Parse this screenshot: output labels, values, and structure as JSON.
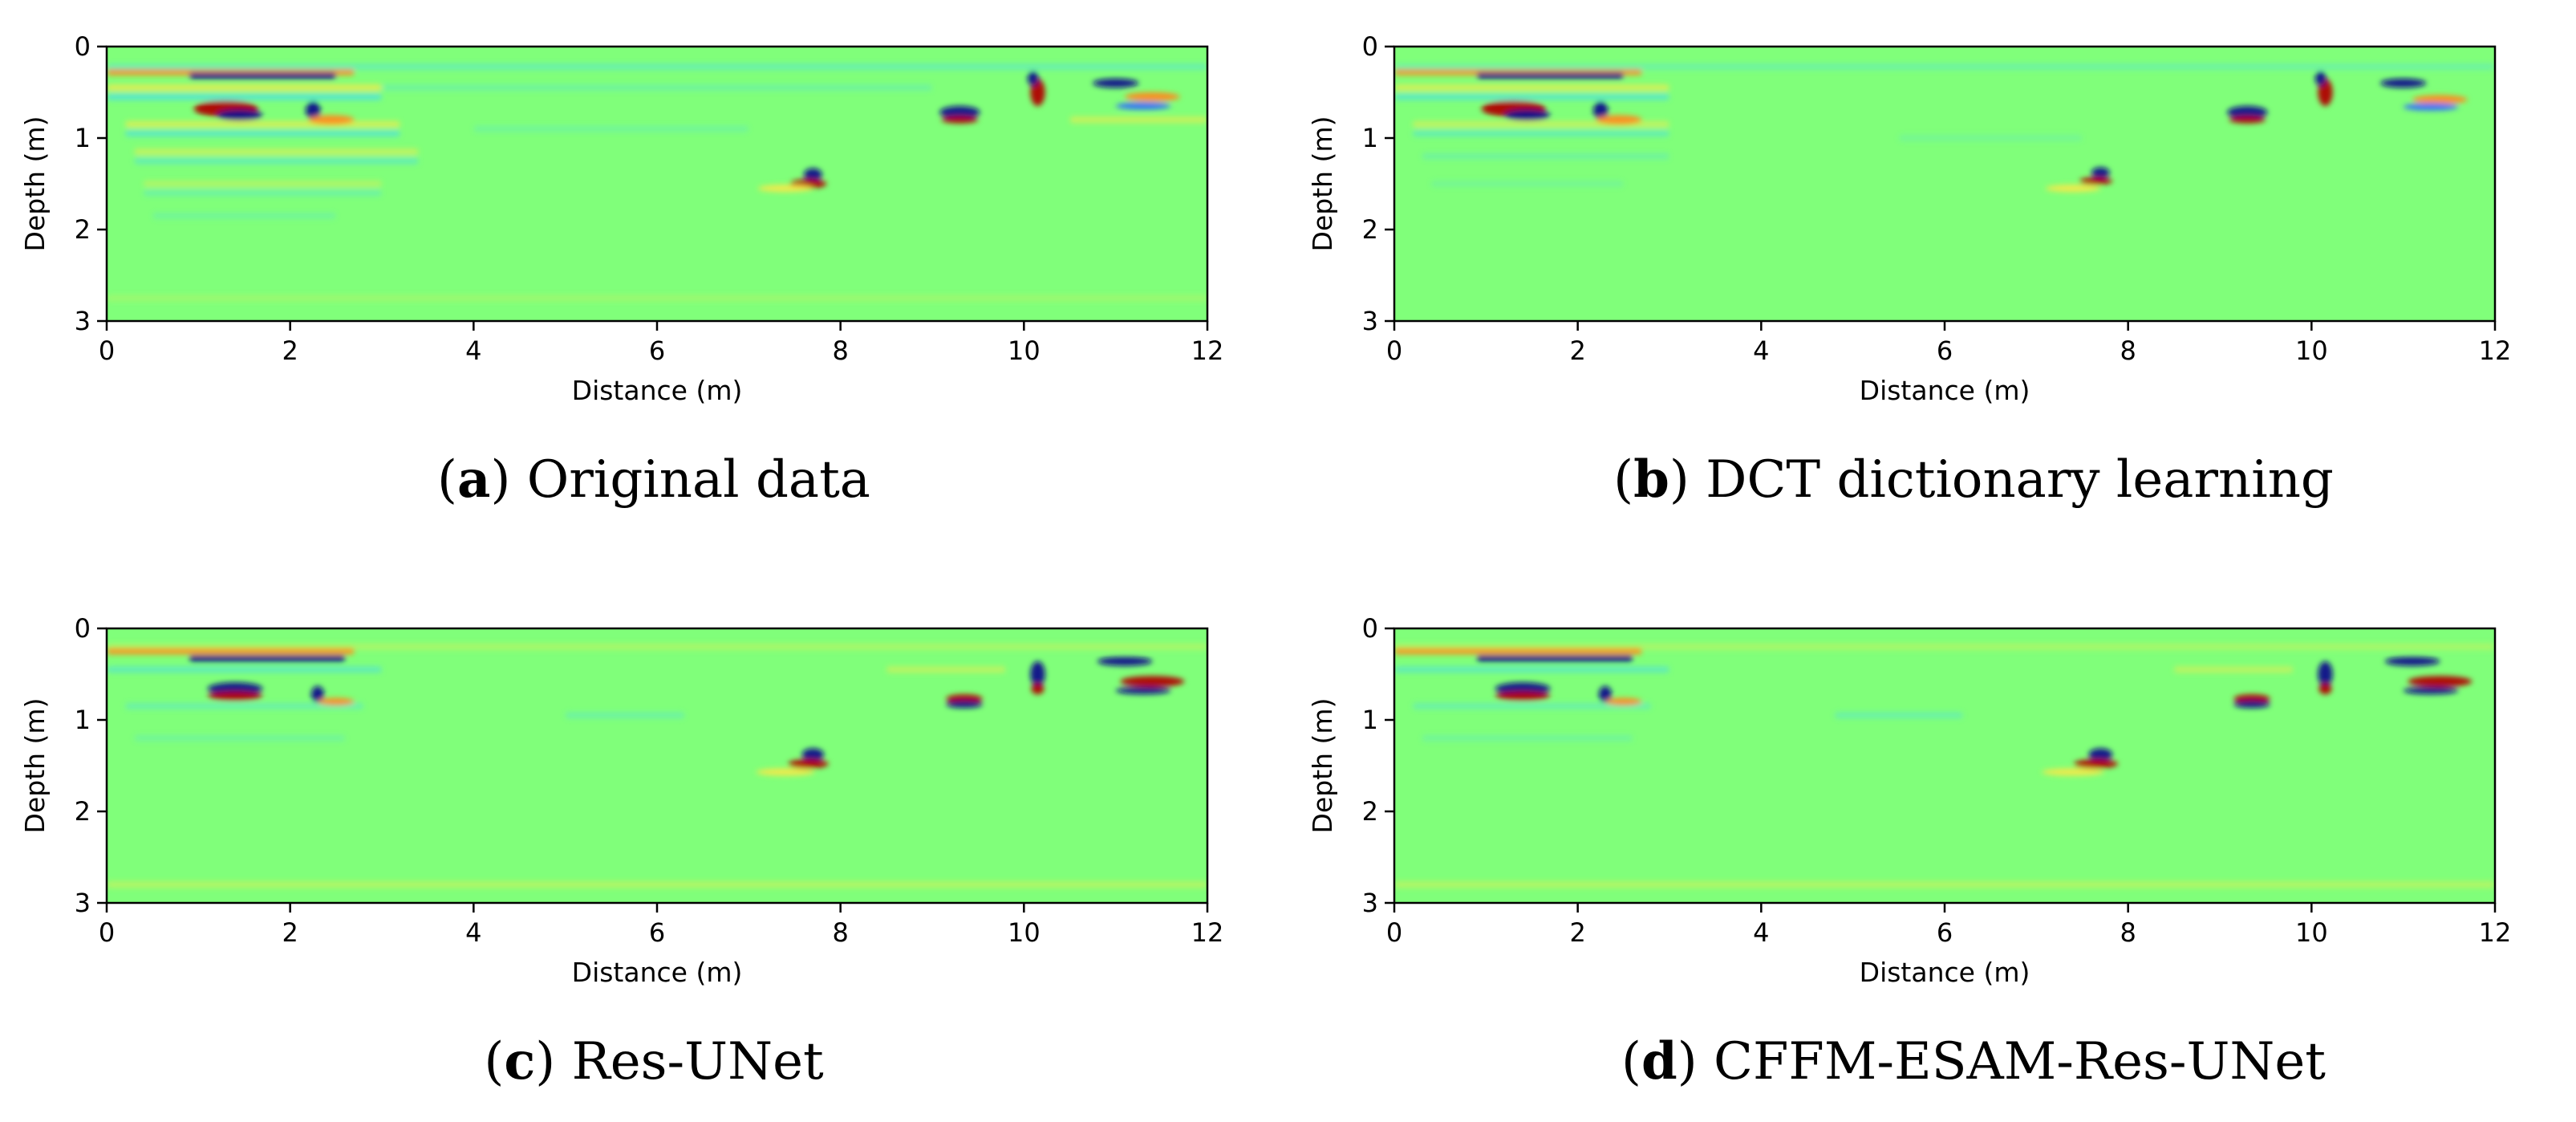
{
  "colors": {
    "background_field": "#80ff7a",
    "strong_negative": "#0a0a8a",
    "negative": "#2f6cff",
    "cyan": "#4de0e0",
    "yellow": "#f5e94a",
    "orange": "#ff8a1a",
    "strong_positive": "#b00000"
  },
  "chart_data": [
    {
      "type": "heatmap",
      "panel_id": "a",
      "caption_letter": "a",
      "caption_text": "Original data",
      "xlabel": "Distance (m)",
      "ylabel": "Depth (m)",
      "xlim": [
        0,
        12
      ],
      "ylim": [
        0,
        3
      ],
      "xticks": [
        "0",
        "2",
        "4",
        "6",
        "8",
        "10",
        "12"
      ],
      "yticks": [
        "0",
        "1",
        "2",
        "3"
      ],
      "features": [
        {
          "kind": "band",
          "x0": 0.0,
          "x1": 2.7,
          "depth": 0.28,
          "color": "orange",
          "opacity": 0.9
        },
        {
          "kind": "band",
          "x0": 0.9,
          "x1": 2.5,
          "depth": 0.32,
          "color": "strong_negative",
          "opacity": 0.95
        },
        {
          "kind": "band",
          "x0": 0.0,
          "x1": 12.0,
          "depth": 0.22,
          "color": "cyan",
          "opacity": 0.5
        },
        {
          "kind": "band",
          "x0": 0.0,
          "x1": 3.0,
          "depth": 0.45,
          "color": "yellow",
          "opacity": 0.8
        },
        {
          "kind": "band",
          "x0": 0.0,
          "x1": 3.0,
          "depth": 0.55,
          "color": "cyan",
          "opacity": 0.8
        },
        {
          "kind": "band",
          "x0": 0.2,
          "x1": 3.2,
          "depth": 0.85,
          "color": "yellow",
          "opacity": 0.7
        },
        {
          "kind": "band",
          "x0": 0.2,
          "x1": 3.2,
          "depth": 0.95,
          "color": "cyan",
          "opacity": 0.7
        },
        {
          "kind": "band",
          "x0": 0.3,
          "x1": 3.4,
          "depth": 1.15,
          "color": "yellow",
          "opacity": 0.55
        },
        {
          "kind": "band",
          "x0": 0.3,
          "x1": 3.4,
          "depth": 1.25,
          "color": "cyan",
          "opacity": 0.55
        },
        {
          "kind": "band",
          "x0": 0.4,
          "x1": 3.0,
          "depth": 1.5,
          "color": "yellow",
          "opacity": 0.4
        },
        {
          "kind": "band",
          "x0": 0.4,
          "x1": 3.0,
          "depth": 1.6,
          "color": "cyan",
          "opacity": 0.4
        },
        {
          "kind": "band",
          "x0": 0.5,
          "x1": 2.5,
          "depth": 1.85,
          "color": "cyan",
          "opacity": 0.3
        },
        {
          "kind": "blob",
          "x": 1.3,
          "depth": 0.68,
          "rx": 0.35,
          "ry": 0.09,
          "color": "strong_positive"
        },
        {
          "kind": "blob",
          "x": 1.45,
          "depth": 0.75,
          "rx": 0.25,
          "ry": 0.06,
          "color": "strong_negative"
        },
        {
          "kind": "blob",
          "x": 2.25,
          "depth": 0.7,
          "rx": 0.08,
          "ry": 0.1,
          "color": "strong_negative"
        },
        {
          "kind": "blob",
          "x": 2.45,
          "depth": 0.8,
          "rx": 0.25,
          "ry": 0.05,
          "color": "orange"
        },
        {
          "kind": "band",
          "x0": 3.0,
          "x1": 9.0,
          "depth": 0.45,
          "color": "cyan",
          "opacity": 0.35
        },
        {
          "kind": "band",
          "x0": 4.0,
          "x1": 7.0,
          "depth": 0.9,
          "color": "cyan",
          "opacity": 0.3
        },
        {
          "kind": "blob",
          "x": 7.7,
          "depth": 1.4,
          "rx": 0.1,
          "ry": 0.07,
          "color": "strong_negative"
        },
        {
          "kind": "blob",
          "x": 7.65,
          "depth": 1.5,
          "rx": 0.2,
          "ry": 0.05,
          "color": "strong_positive"
        },
        {
          "kind": "blob",
          "x": 7.4,
          "depth": 1.55,
          "rx": 0.3,
          "ry": 0.04,
          "color": "yellow"
        },
        {
          "kind": "blob",
          "x": 9.3,
          "depth": 0.72,
          "rx": 0.22,
          "ry": 0.07,
          "color": "strong_negative"
        },
        {
          "kind": "blob",
          "x": 9.3,
          "depth": 0.8,
          "rx": 0.2,
          "ry": 0.04,
          "color": "strong_positive"
        },
        {
          "kind": "blob",
          "x": 10.15,
          "depth": 0.5,
          "rx": 0.08,
          "ry": 0.15,
          "color": "strong_positive"
        },
        {
          "kind": "blob",
          "x": 10.1,
          "depth": 0.35,
          "rx": 0.06,
          "ry": 0.08,
          "color": "strong_negative"
        },
        {
          "kind": "blob",
          "x": 11.0,
          "depth": 0.4,
          "rx": 0.25,
          "ry": 0.05,
          "color": "strong_negative"
        },
        {
          "kind": "blob",
          "x": 11.4,
          "depth": 0.55,
          "rx": 0.3,
          "ry": 0.05,
          "color": "orange"
        },
        {
          "kind": "blob",
          "x": 11.3,
          "depth": 0.65,
          "rx": 0.3,
          "ry": 0.04,
          "color": "negative"
        },
        {
          "kind": "band",
          "x0": 10.5,
          "x1": 12.0,
          "depth": 0.8,
          "color": "yellow",
          "opacity": 0.6
        },
        {
          "kind": "band",
          "x0": 0.0,
          "x1": 12.0,
          "depth": 2.75,
          "color": "yellow",
          "opacity": 0.25
        }
      ]
    },
    {
      "type": "heatmap",
      "panel_id": "b",
      "caption_letter": "b",
      "caption_text": "DCT dictionary learning",
      "xlabel": "Distance (m)",
      "ylabel": "Depth (m)",
      "xlim": [
        0,
        12
      ],
      "ylim": [
        0,
        3
      ],
      "xticks": [
        "0",
        "2",
        "4",
        "6",
        "8",
        "10",
        "12"
      ],
      "yticks": [
        "0",
        "1",
        "2",
        "3"
      ],
      "features": [
        {
          "kind": "band",
          "x0": 0.0,
          "x1": 2.7,
          "depth": 0.28,
          "color": "orange",
          "opacity": 0.85
        },
        {
          "kind": "band",
          "x0": 0.9,
          "x1": 2.5,
          "depth": 0.32,
          "color": "strong_negative",
          "opacity": 0.9
        },
        {
          "kind": "band",
          "x0": 0.0,
          "x1": 12.0,
          "depth": 0.22,
          "color": "cyan",
          "opacity": 0.4
        },
        {
          "kind": "band",
          "x0": 0.0,
          "x1": 3.0,
          "depth": 0.45,
          "color": "yellow",
          "opacity": 0.7
        },
        {
          "kind": "band",
          "x0": 0.0,
          "x1": 3.0,
          "depth": 0.55,
          "color": "cyan",
          "opacity": 0.7
        },
        {
          "kind": "band",
          "x0": 0.2,
          "x1": 3.0,
          "depth": 0.85,
          "color": "yellow",
          "opacity": 0.55
        },
        {
          "kind": "band",
          "x0": 0.2,
          "x1": 3.0,
          "depth": 0.95,
          "color": "cyan",
          "opacity": 0.55
        },
        {
          "kind": "band",
          "x0": 0.3,
          "x1": 3.0,
          "depth": 1.2,
          "color": "cyan",
          "opacity": 0.35
        },
        {
          "kind": "band",
          "x0": 0.4,
          "x1": 2.5,
          "depth": 1.5,
          "color": "cyan",
          "opacity": 0.25
        },
        {
          "kind": "blob",
          "x": 1.3,
          "depth": 0.68,
          "rx": 0.35,
          "ry": 0.09,
          "color": "strong_positive"
        },
        {
          "kind": "blob",
          "x": 1.45,
          "depth": 0.75,
          "rx": 0.25,
          "ry": 0.06,
          "color": "strong_negative"
        },
        {
          "kind": "blob",
          "x": 2.25,
          "depth": 0.7,
          "rx": 0.08,
          "ry": 0.1,
          "color": "strong_negative"
        },
        {
          "kind": "blob",
          "x": 2.45,
          "depth": 0.8,
          "rx": 0.25,
          "ry": 0.05,
          "color": "orange"
        },
        {
          "kind": "band",
          "x0": 5.5,
          "x1": 7.5,
          "depth": 1.0,
          "color": "cyan",
          "opacity": 0.25
        },
        {
          "kind": "blob",
          "x": 7.7,
          "depth": 1.38,
          "rx": 0.1,
          "ry": 0.06,
          "color": "strong_negative"
        },
        {
          "kind": "blob",
          "x": 7.65,
          "depth": 1.47,
          "rx": 0.18,
          "ry": 0.04,
          "color": "strong_positive"
        },
        {
          "kind": "blob",
          "x": 7.4,
          "depth": 1.55,
          "rx": 0.3,
          "ry": 0.04,
          "color": "yellow"
        },
        {
          "kind": "blob",
          "x": 9.3,
          "depth": 0.72,
          "rx": 0.22,
          "ry": 0.07,
          "color": "strong_negative"
        },
        {
          "kind": "blob",
          "x": 9.3,
          "depth": 0.8,
          "rx": 0.2,
          "ry": 0.04,
          "color": "strong_positive"
        },
        {
          "kind": "blob",
          "x": 10.15,
          "depth": 0.5,
          "rx": 0.08,
          "ry": 0.15,
          "color": "strong_positive"
        },
        {
          "kind": "blob",
          "x": 10.1,
          "depth": 0.35,
          "rx": 0.06,
          "ry": 0.08,
          "color": "strong_negative"
        },
        {
          "kind": "blob",
          "x": 11.0,
          "depth": 0.4,
          "rx": 0.25,
          "ry": 0.05,
          "color": "strong_negative"
        },
        {
          "kind": "blob",
          "x": 11.4,
          "depth": 0.58,
          "rx": 0.3,
          "ry": 0.05,
          "color": "orange"
        },
        {
          "kind": "blob",
          "x": 11.3,
          "depth": 0.66,
          "rx": 0.3,
          "ry": 0.04,
          "color": "negative"
        }
      ]
    },
    {
      "type": "heatmap",
      "panel_id": "c",
      "caption_letter": "c",
      "caption_text": "Res-UNet",
      "xlabel": "Distance (m)",
      "ylabel": "Depth (m)",
      "xlim": [
        0,
        12
      ],
      "ylim": [
        0,
        3
      ],
      "xticks": [
        "0",
        "2",
        "4",
        "6",
        "8",
        "10",
        "12"
      ],
      "yticks": [
        "0",
        "1",
        "2",
        "3"
      ],
      "features": [
        {
          "kind": "band",
          "x0": 0.0,
          "x1": 2.7,
          "depth": 0.25,
          "color": "orange",
          "opacity": 0.9
        },
        {
          "kind": "band",
          "x0": 0.9,
          "x1": 2.6,
          "depth": 0.33,
          "color": "strong_negative",
          "opacity": 0.95
        },
        {
          "kind": "band",
          "x0": 0.0,
          "x1": 12.0,
          "depth": 0.2,
          "color": "yellow",
          "opacity": 0.35
        },
        {
          "kind": "band",
          "x0": 0.0,
          "x1": 3.0,
          "depth": 0.45,
          "color": "cyan",
          "opacity": 0.6
        },
        {
          "kind": "band",
          "x0": 0.2,
          "x1": 2.8,
          "depth": 0.85,
          "color": "cyan",
          "opacity": 0.45
        },
        {
          "kind": "band",
          "x0": 0.3,
          "x1": 2.6,
          "depth": 1.2,
          "color": "cyan",
          "opacity": 0.3
        },
        {
          "kind": "blob",
          "x": 1.4,
          "depth": 0.66,
          "rx": 0.3,
          "ry": 0.07,
          "color": "strong_negative"
        },
        {
          "kind": "blob",
          "x": 1.4,
          "depth": 0.74,
          "rx": 0.3,
          "ry": 0.05,
          "color": "strong_positive"
        },
        {
          "kind": "blob",
          "x": 2.3,
          "depth": 0.72,
          "rx": 0.07,
          "ry": 0.09,
          "color": "strong_negative"
        },
        {
          "kind": "blob",
          "x": 2.5,
          "depth": 0.8,
          "rx": 0.2,
          "ry": 0.04,
          "color": "orange"
        },
        {
          "kind": "band",
          "x0": 5.0,
          "x1": 6.3,
          "depth": 0.95,
          "color": "cyan",
          "opacity": 0.4
        },
        {
          "kind": "blob",
          "x": 7.7,
          "depth": 1.38,
          "rx": 0.12,
          "ry": 0.07,
          "color": "strong_negative"
        },
        {
          "kind": "blob",
          "x": 7.65,
          "depth": 1.48,
          "rx": 0.22,
          "ry": 0.05,
          "color": "strong_positive"
        },
        {
          "kind": "blob",
          "x": 7.4,
          "depth": 1.57,
          "rx": 0.32,
          "ry": 0.04,
          "color": "yellow"
        },
        {
          "kind": "blob",
          "x": 9.35,
          "depth": 0.77,
          "rx": 0.2,
          "ry": 0.05,
          "color": "strong_positive"
        },
        {
          "kind": "blob",
          "x": 9.35,
          "depth": 0.83,
          "rx": 0.2,
          "ry": 0.04,
          "color": "strong_negative"
        },
        {
          "kind": "blob",
          "x": 10.15,
          "depth": 0.5,
          "rx": 0.08,
          "ry": 0.14,
          "color": "strong_negative"
        },
        {
          "kind": "blob",
          "x": 10.15,
          "depth": 0.66,
          "rx": 0.07,
          "ry": 0.06,
          "color": "strong_positive"
        },
        {
          "kind": "blob",
          "x": 11.1,
          "depth": 0.36,
          "rx": 0.3,
          "ry": 0.05,
          "color": "strong_negative"
        },
        {
          "kind": "blob",
          "x": 11.4,
          "depth": 0.58,
          "rx": 0.35,
          "ry": 0.06,
          "color": "strong_positive"
        },
        {
          "kind": "blob",
          "x": 11.3,
          "depth": 0.68,
          "rx": 0.3,
          "ry": 0.04,
          "color": "strong_negative"
        },
        {
          "kind": "band",
          "x0": 8.5,
          "x1": 9.8,
          "depth": 0.45,
          "color": "yellow",
          "opacity": 0.5
        },
        {
          "kind": "band",
          "x0": 0.0,
          "x1": 12.0,
          "depth": 2.8,
          "color": "yellow",
          "opacity": 0.45
        }
      ]
    },
    {
      "type": "heatmap",
      "panel_id": "d",
      "caption_letter": "d",
      "caption_text": "CFFM-ESAM-Res-UNet",
      "xlabel": "Distance (m)",
      "ylabel": "Depth (m)",
      "xlim": [
        0,
        12
      ],
      "ylim": [
        0,
        3
      ],
      "xticks": [
        "0",
        "2",
        "4",
        "6",
        "8",
        "10",
        "12"
      ],
      "yticks": [
        "0",
        "1",
        "2",
        "3"
      ],
      "features": [
        {
          "kind": "band",
          "x0": 0.0,
          "x1": 2.7,
          "depth": 0.25,
          "color": "orange",
          "opacity": 0.9
        },
        {
          "kind": "band",
          "x0": 0.9,
          "x1": 2.6,
          "depth": 0.33,
          "color": "strong_negative",
          "opacity": 0.95
        },
        {
          "kind": "band",
          "x0": 0.0,
          "x1": 12.0,
          "depth": 0.2,
          "color": "yellow",
          "opacity": 0.35
        },
        {
          "kind": "band",
          "x0": 0.0,
          "x1": 3.0,
          "depth": 0.45,
          "color": "cyan",
          "opacity": 0.6
        },
        {
          "kind": "band",
          "x0": 0.2,
          "x1": 2.8,
          "depth": 0.85,
          "color": "cyan",
          "opacity": 0.45
        },
        {
          "kind": "band",
          "x0": 0.3,
          "x1": 2.6,
          "depth": 1.2,
          "color": "cyan",
          "opacity": 0.3
        },
        {
          "kind": "blob",
          "x": 1.4,
          "depth": 0.66,
          "rx": 0.3,
          "ry": 0.07,
          "color": "strong_negative"
        },
        {
          "kind": "blob",
          "x": 1.4,
          "depth": 0.74,
          "rx": 0.3,
          "ry": 0.05,
          "color": "strong_positive"
        },
        {
          "kind": "blob",
          "x": 2.3,
          "depth": 0.72,
          "rx": 0.07,
          "ry": 0.09,
          "color": "strong_negative"
        },
        {
          "kind": "blob",
          "x": 2.5,
          "depth": 0.8,
          "rx": 0.2,
          "ry": 0.04,
          "color": "orange"
        },
        {
          "kind": "band",
          "x0": 4.8,
          "x1": 6.2,
          "depth": 0.95,
          "color": "cyan",
          "opacity": 0.45
        },
        {
          "kind": "blob",
          "x": 7.7,
          "depth": 1.38,
          "rx": 0.13,
          "ry": 0.07,
          "color": "strong_negative"
        },
        {
          "kind": "blob",
          "x": 7.65,
          "depth": 1.48,
          "rx": 0.24,
          "ry": 0.05,
          "color": "strong_positive"
        },
        {
          "kind": "blob",
          "x": 7.4,
          "depth": 1.57,
          "rx": 0.34,
          "ry": 0.04,
          "color": "yellow"
        },
        {
          "kind": "blob",
          "x": 9.35,
          "depth": 0.77,
          "rx": 0.2,
          "ry": 0.05,
          "color": "strong_positive"
        },
        {
          "kind": "blob",
          "x": 9.35,
          "depth": 0.83,
          "rx": 0.2,
          "ry": 0.04,
          "color": "strong_negative"
        },
        {
          "kind": "blob",
          "x": 10.15,
          "depth": 0.5,
          "rx": 0.08,
          "ry": 0.14,
          "color": "strong_negative"
        },
        {
          "kind": "blob",
          "x": 10.15,
          "depth": 0.66,
          "rx": 0.07,
          "ry": 0.06,
          "color": "strong_positive"
        },
        {
          "kind": "blob",
          "x": 11.1,
          "depth": 0.36,
          "rx": 0.3,
          "ry": 0.05,
          "color": "strong_negative"
        },
        {
          "kind": "blob",
          "x": 11.4,
          "depth": 0.58,
          "rx": 0.35,
          "ry": 0.06,
          "color": "strong_positive"
        },
        {
          "kind": "blob",
          "x": 11.3,
          "depth": 0.68,
          "rx": 0.3,
          "ry": 0.04,
          "color": "strong_negative"
        },
        {
          "kind": "band",
          "x0": 8.5,
          "x1": 9.8,
          "depth": 0.45,
          "color": "yellow",
          "opacity": 0.5
        },
        {
          "kind": "band",
          "x0": 0.0,
          "x1": 12.0,
          "depth": 2.8,
          "color": "yellow",
          "opacity": 0.45
        }
      ]
    }
  ]
}
